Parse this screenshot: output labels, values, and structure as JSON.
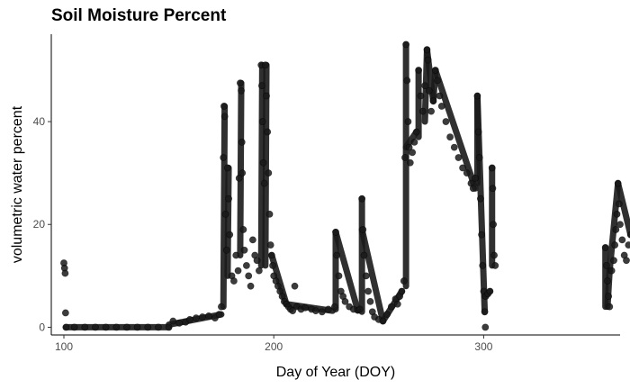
{
  "chart_data": {
    "type": "scatter",
    "title": "Soil Moisture Percent",
    "xlabel": "Day of Year (DOY)",
    "ylabel": "volumetric water percent",
    "xlim": [
      94,
      365
    ],
    "ylim": [
      -1.5,
      57
    ],
    "xticks": [
      100,
      200,
      300
    ],
    "yticks": [
      0,
      20,
      40
    ],
    "grid": false,
    "legend": "none",
    "point_color": "#1a1a1a",
    "points": [
      [
        100,
        12.5
      ],
      [
        100.3,
        11.5
      ],
      [
        100.6,
        10.5
      ],
      [
        100.8,
        2.8
      ],
      [
        101,
        0
      ],
      [
        105,
        0
      ],
      [
        110,
        0
      ],
      [
        115,
        0
      ],
      [
        120,
        0
      ],
      [
        125,
        0
      ],
      [
        130,
        0
      ],
      [
        135,
        0
      ],
      [
        140,
        0
      ],
      [
        145,
        0
      ],
      [
        150,
        0
      ],
      [
        152,
        1.2
      ],
      [
        155,
        0.8
      ],
      [
        158,
        1.0
      ],
      [
        160,
        1.5
      ],
      [
        163,
        1.8
      ],
      [
        166,
        2.0
      ],
      [
        169,
        2.2
      ],
      [
        172,
        1.8
      ],
      [
        174,
        2.5
      ],
      [
        175,
        4.0
      ],
      [
        176,
        33
      ],
      [
        176.3,
        43
      ],
      [
        176.6,
        41
      ],
      [
        177,
        22
      ],
      [
        177.5,
        15
      ],
      [
        178,
        31
      ],
      [
        178.5,
        25
      ],
      [
        179,
        18
      ],
      [
        180,
        10
      ],
      [
        181,
        9
      ],
      [
        182,
        14
      ],
      [
        183,
        11
      ],
      [
        183.5,
        29
      ],
      [
        184,
        47.5
      ],
      [
        184.5,
        46
      ],
      [
        184.8,
        36
      ],
      [
        185,
        30
      ],
      [
        185.5,
        19
      ],
      [
        186,
        15
      ],
      [
        187,
        12
      ],
      [
        188,
        10
      ],
      [
        189,
        8
      ],
      [
        190,
        17
      ],
      [
        191,
        14
      ],
      [
        192,
        13
      ],
      [
        193,
        11
      ],
      [
        194,
        51
      ],
      [
        194.3,
        47
      ],
      [
        194.6,
        40
      ],
      [
        195,
        32
      ],
      [
        195.5,
        28
      ],
      [
        196,
        51
      ],
      [
        196.5,
        45
      ],
      [
        197,
        38
      ],
      [
        197.5,
        30
      ],
      [
        198,
        22
      ],
      [
        198.5,
        16
      ],
      [
        199,
        14
      ],
      [
        199.5,
        12
      ],
      [
        200,
        10
      ],
      [
        201,
        9
      ],
      [
        202,
        8
      ],
      [
        203,
        7
      ],
      [
        204,
        6
      ],
      [
        205,
        5
      ],
      [
        206,
        4.5
      ],
      [
        207,
        4
      ],
      [
        208,
        3.5
      ],
      [
        209,
        3.2
      ],
      [
        210,
        8
      ],
      [
        211,
        4
      ],
      [
        213,
        3.5
      ],
      [
        215,
        3.8
      ],
      [
        218,
        3.5
      ],
      [
        220,
        3.2
      ],
      [
        223,
        3.0
      ],
      [
        226,
        3.5
      ],
      [
        229,
        4
      ],
      [
        229.5,
        18.5
      ],
      [
        230,
        14
      ],
      [
        231,
        10
      ],
      [
        232,
        7
      ],
      [
        233,
        6
      ],
      [
        234,
        5
      ],
      [
        236,
        4
      ],
      [
        238,
        3.5
      ],
      [
        240,
        3.3
      ],
      [
        241,
        3.5
      ],
      [
        242,
        25
      ],
      [
        242.5,
        19
      ],
      [
        243,
        14
      ],
      [
        244,
        10
      ],
      [
        245,
        7
      ],
      [
        246,
        5
      ],
      [
        247,
        3
      ],
      [
        248,
        2
      ],
      [
        250,
        1.5
      ],
      [
        252,
        1.2
      ],
      [
        254,
        2.5
      ],
      [
        256,
        4
      ],
      [
        258,
        5.5
      ],
      [
        259,
        4.5
      ],
      [
        260,
        6
      ],
      [
        261,
        7
      ],
      [
        262,
        9
      ],
      [
        262.5,
        33
      ],
      [
        263,
        55
      ],
      [
        263.5,
        48
      ],
      [
        264,
        40
      ],
      [
        264.5,
        35
      ],
      [
        265,
        32
      ],
      [
        266,
        34
      ],
      [
        267,
        36
      ],
      [
        268,
        38
      ],
      [
        269,
        50
      ],
      [
        270,
        45
      ],
      [
        271,
        42
      ],
      [
        272,
        47
      ],
      [
        273,
        54
      ],
      [
        273.5,
        52
      ],
      [
        274,
        46
      ],
      [
        275,
        42
      ],
      [
        276,
        44
      ],
      [
        277,
        50
      ],
      [
        278,
        48
      ],
      [
        279,
        45
      ],
      [
        280,
        43
      ],
      [
        282,
        40
      ],
      [
        284,
        37
      ],
      [
        286,
        35
      ],
      [
        288,
        33
      ],
      [
        290,
        31
      ],
      [
        292,
        30
      ],
      [
        294,
        28
      ],
      [
        295,
        27
      ],
      [
        296,
        29
      ],
      [
        297,
        45
      ],
      [
        297.5,
        38
      ],
      [
        298,
        33
      ],
      [
        298.5,
        25
      ],
      [
        299,
        18
      ],
      [
        299.5,
        12
      ],
      [
        300,
        7
      ],
      [
        300.5,
        3
      ],
      [
        300.8,
        0
      ],
      [
        301,
        6
      ],
      [
        302,
        6.5
      ],
      [
        303,
        7
      ],
      [
        304,
        31
      ],
      [
        304.3,
        27
      ],
      [
        304.6,
        20
      ],
      [
        305,
        14
      ],
      [
        305.5,
        12
      ],
      [
        358,
        15.5
      ],
      [
        358.5,
        12
      ],
      [
        359,
        9
      ],
      [
        359.5,
        6
      ],
      [
        360,
        4
      ],
      [
        361,
        11
      ],
      [
        362,
        13
      ],
      [
        362.5,
        16
      ],
      [
        363,
        19
      ],
      [
        363.5,
        22
      ],
      [
        364,
        28
      ],
      [
        364.5,
        24
      ],
      [
        365,
        20
      ],
      [
        366,
        17
      ],
      [
        367,
        14
      ],
      [
        368,
        13
      ],
      [
        369,
        16
      ],
      [
        370,
        18
      ]
    ],
    "segments": [
      [
        101,
        0,
        150,
        0
      ],
      [
        150,
        0.5,
        175,
        2.5
      ],
      [
        176,
        4,
        176.6,
        43
      ],
      [
        178,
        10,
        178.5,
        31
      ],
      [
        184,
        14,
        184.5,
        47.5
      ],
      [
        194,
        12,
        194.5,
        51
      ],
      [
        196,
        12,
        196.5,
        51
      ],
      [
        199,
        14,
        206,
        4.5
      ],
      [
        206,
        4.5,
        228,
        3.2
      ],
      [
        229.5,
        3.5,
        229.5,
        18.5
      ],
      [
        229.5,
        18.5,
        240,
        3.3
      ],
      [
        242,
        3,
        242,
        25
      ],
      [
        242,
        19,
        252,
        1.2
      ],
      [
        252,
        1.2,
        261,
        7
      ],
      [
        263,
        8,
        263,
        55
      ],
      [
        263,
        35,
        268,
        38
      ],
      [
        269,
        37,
        269,
        50
      ],
      [
        272,
        40,
        273,
        54
      ],
      [
        273,
        54,
        276,
        44
      ],
      [
        276,
        44,
        277,
        50
      ],
      [
        277,
        50,
        296,
        27
      ],
      [
        297,
        28,
        297,
        45
      ],
      [
        297,
        45,
        300.5,
        3
      ],
      [
        300.5,
        6,
        303,
        7
      ],
      [
        304,
        12,
        304,
        31
      ],
      [
        358,
        4,
        358,
        15.5
      ],
      [
        359,
        4,
        360,
        11
      ],
      [
        360,
        11,
        364,
        28
      ],
      [
        364,
        28,
        370,
        18
      ]
    ]
  }
}
